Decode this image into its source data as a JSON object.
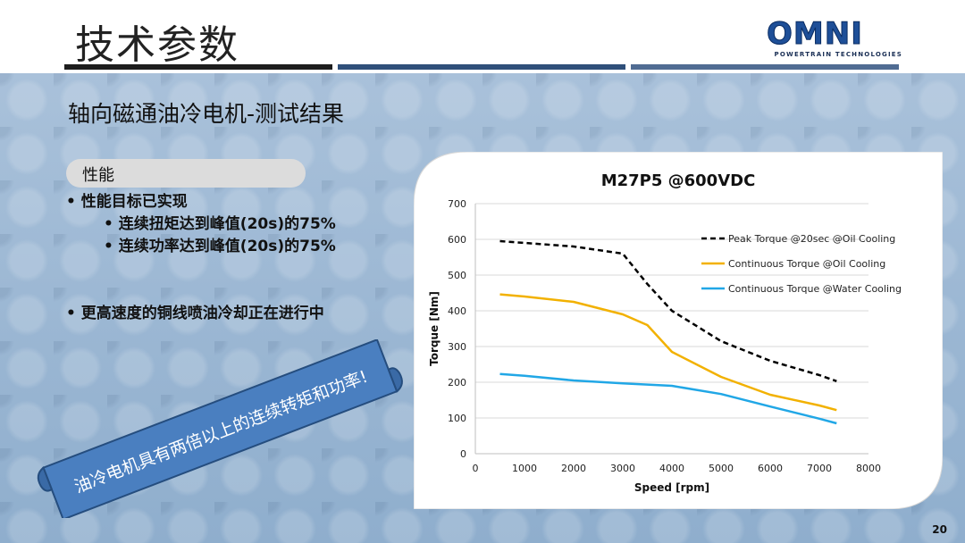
{
  "header": {
    "title": "技术参数",
    "logo_main": "OMNI",
    "logo_sub": "POWERTRAIN TECHNOLOGIES"
  },
  "subtitle": "轴向磁通油冷电机-测试结果",
  "section_label": "性能",
  "bullets": {
    "main1": "性能目标已实现",
    "sub1": "连续扭矩达到峰值(20s)的75%",
    "sub2": "连续功率达到峰值(20s)的75%",
    "main2": "更高速度的铜线喷油冷却正在进行中"
  },
  "banner": "油冷电机具有两倍以上的连续转矩和功率!",
  "page_number": "20",
  "chart_data": {
    "type": "line",
    "title": "M27P5  @600VDC",
    "xlabel": "Speed [rpm]",
    "ylabel": "Torque [Nm]",
    "xlim": [
      0,
      8000
    ],
    "ylim": [
      0,
      700
    ],
    "xticks": [
      "0",
      "1000",
      "2000",
      "3000",
      "4000",
      "5000",
      "6000",
      "7000",
      "8000"
    ],
    "yticks": [
      "0",
      "100",
      "200",
      "300",
      "400",
      "500",
      "600",
      "700"
    ],
    "grid": true,
    "legend_position": "top-right",
    "series": [
      {
        "name": "Peak Torque @20sec @Oil Cooling",
        "style": "dashed",
        "color": "#000000",
        "x": [
          500,
          1000,
          2000,
          3000,
          3500,
          4000,
          5000,
          6000,
          7000,
          7350
        ],
        "y": [
          595,
          590,
          580,
          560,
          475,
          400,
          315,
          260,
          220,
          203
        ]
      },
      {
        "name": "Continuous Torque @Oil Cooling",
        "style": "solid",
        "color": "#f2b100",
        "x": [
          500,
          1000,
          2000,
          3000,
          3500,
          4000,
          5000,
          6000,
          7000,
          7350
        ],
        "y": [
          446,
          440,
          425,
          390,
          360,
          285,
          215,
          165,
          135,
          122
        ]
      },
      {
        "name": "Continuous Torque @Water Cooling",
        "style": "solid",
        "color": "#21a7e6",
        "x": [
          500,
          1000,
          2000,
          3000,
          4000,
          5000,
          6000,
          7000,
          7350
        ],
        "y": [
          223,
          218,
          205,
          197,
          190,
          167,
          132,
          98,
          85
        ]
      }
    ]
  }
}
